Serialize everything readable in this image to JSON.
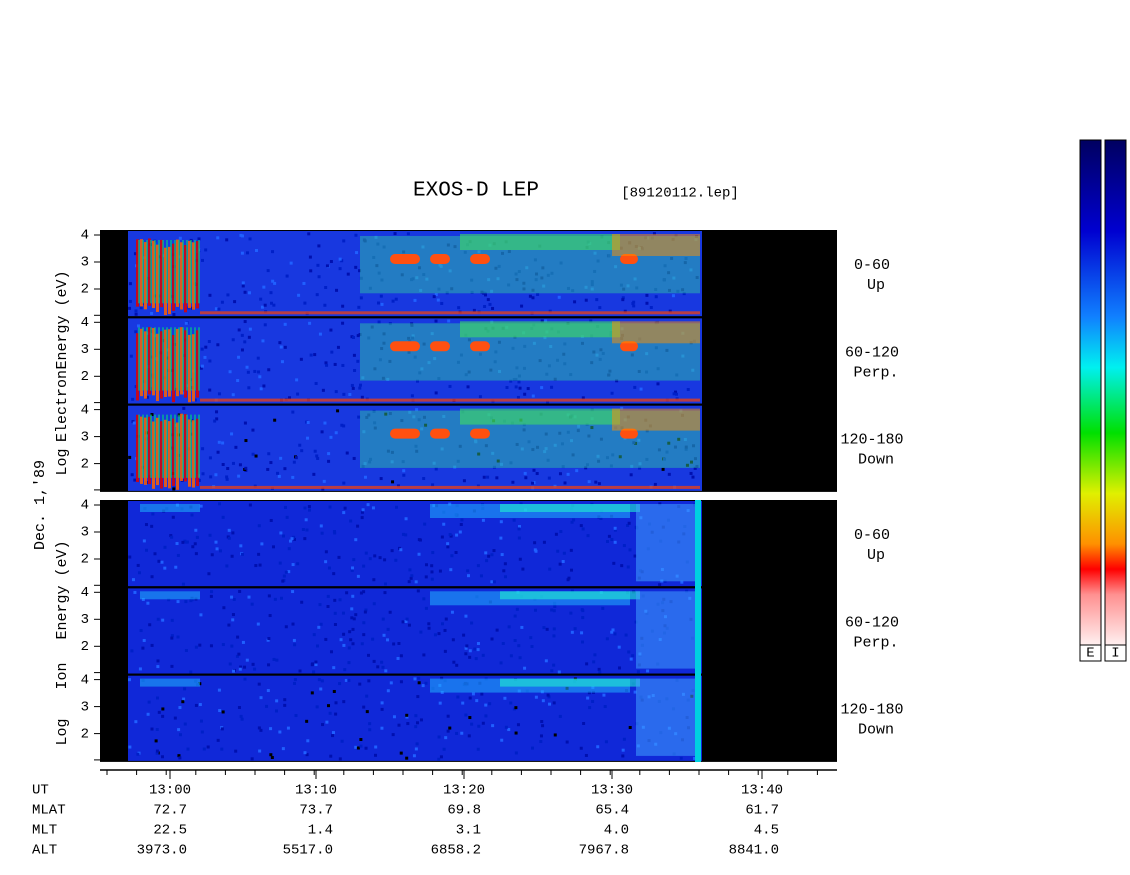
{
  "header": {
    "title": "EXOS-D LEP",
    "file": "[89120112.lep]"
  },
  "date": "Dec. 1,'89",
  "yticks": [
    4,
    3,
    2
  ],
  "electron": {
    "words": [
      "Log",
      "Electron",
      "Energy (eV)"
    ]
  },
  "ion": {
    "words": [
      "Log",
      "Ion",
      "Energy (eV)"
    ]
  },
  "panels": [
    {
      "angle": "0-60",
      "direction": "Up"
    },
    {
      "angle": "60-120",
      "direction": "Perp."
    },
    {
      "angle": "120-180",
      "direction": "Down"
    }
  ],
  "colorbars": [
    "E",
    "I"
  ],
  "ephemeris": [
    {
      "name": "UT",
      "values": [
        "13:00",
        "13:10",
        "13:20",
        "13:30",
        "13:40"
      ]
    },
    {
      "name": "MLAT",
      "values": [
        "72.7",
        "73.7",
        "69.8",
        "65.4",
        "61.7"
      ]
    },
    {
      "name": "MLT",
      "values": [
        "22.5",
        "1.4",
        "3.1",
        "4.0",
        "4.5"
      ]
    },
    {
      "name": "ALT",
      "values": [
        "3973.0",
        "5517.0",
        "6858.2",
        "7967.8",
        "8841.0"
      ]
    }
  ]
}
